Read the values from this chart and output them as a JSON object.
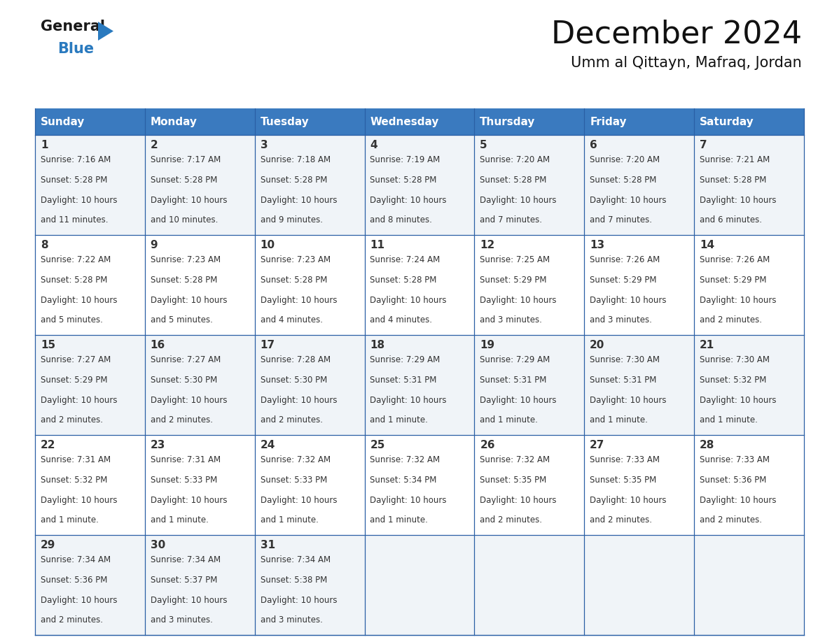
{
  "title": "December 2024",
  "subtitle": "Umm al Qittayn, Mafraq, Jordan",
  "days_of_week": [
    "Sunday",
    "Monday",
    "Tuesday",
    "Wednesday",
    "Thursday",
    "Friday",
    "Saturday"
  ],
  "header_bg": "#3a7abf",
  "header_text": "#ffffff",
  "week_backgrounds": [
    "#f0f4f8",
    "#ffffff",
    "#f0f4f8",
    "#ffffff",
    "#f0f4f8"
  ],
  "border_color": "#2a5fa5",
  "text_color": "#333333",
  "calendar_data": [
    {
      "day": 1,
      "sunrise": "7:16 AM",
      "sunset": "5:28 PM",
      "daylight": "10 hours and 11 minutes."
    },
    {
      "day": 2,
      "sunrise": "7:17 AM",
      "sunset": "5:28 PM",
      "daylight": "10 hours and 10 minutes."
    },
    {
      "day": 3,
      "sunrise": "7:18 AM",
      "sunset": "5:28 PM",
      "daylight": "10 hours and 9 minutes."
    },
    {
      "day": 4,
      "sunrise": "7:19 AM",
      "sunset": "5:28 PM",
      "daylight": "10 hours and 8 minutes."
    },
    {
      "day": 5,
      "sunrise": "7:20 AM",
      "sunset": "5:28 PM",
      "daylight": "10 hours and 7 minutes."
    },
    {
      "day": 6,
      "sunrise": "7:20 AM",
      "sunset": "5:28 PM",
      "daylight": "10 hours and 7 minutes."
    },
    {
      "day": 7,
      "sunrise": "7:21 AM",
      "sunset": "5:28 PM",
      "daylight": "10 hours and 6 minutes."
    },
    {
      "day": 8,
      "sunrise": "7:22 AM",
      "sunset": "5:28 PM",
      "daylight": "10 hours and 5 minutes."
    },
    {
      "day": 9,
      "sunrise": "7:23 AM",
      "sunset": "5:28 PM",
      "daylight": "10 hours and 5 minutes."
    },
    {
      "day": 10,
      "sunrise": "7:23 AM",
      "sunset": "5:28 PM",
      "daylight": "10 hours and 4 minutes."
    },
    {
      "day": 11,
      "sunrise": "7:24 AM",
      "sunset": "5:28 PM",
      "daylight": "10 hours and 4 minutes."
    },
    {
      "day": 12,
      "sunrise": "7:25 AM",
      "sunset": "5:29 PM",
      "daylight": "10 hours and 3 minutes."
    },
    {
      "day": 13,
      "sunrise": "7:26 AM",
      "sunset": "5:29 PM",
      "daylight": "10 hours and 3 minutes."
    },
    {
      "day": 14,
      "sunrise": "7:26 AM",
      "sunset": "5:29 PM",
      "daylight": "10 hours and 2 minutes."
    },
    {
      "day": 15,
      "sunrise": "7:27 AM",
      "sunset": "5:29 PM",
      "daylight": "10 hours and 2 minutes."
    },
    {
      "day": 16,
      "sunrise": "7:27 AM",
      "sunset": "5:30 PM",
      "daylight": "10 hours and 2 minutes."
    },
    {
      "day": 17,
      "sunrise": "7:28 AM",
      "sunset": "5:30 PM",
      "daylight": "10 hours and 2 minutes."
    },
    {
      "day": 18,
      "sunrise": "7:29 AM",
      "sunset": "5:31 PM",
      "daylight": "10 hours and 1 minute."
    },
    {
      "day": 19,
      "sunrise": "7:29 AM",
      "sunset": "5:31 PM",
      "daylight": "10 hours and 1 minute."
    },
    {
      "day": 20,
      "sunrise": "7:30 AM",
      "sunset": "5:31 PM",
      "daylight": "10 hours and 1 minute."
    },
    {
      "day": 21,
      "sunrise": "7:30 AM",
      "sunset": "5:32 PM",
      "daylight": "10 hours and 1 minute."
    },
    {
      "day": 22,
      "sunrise": "7:31 AM",
      "sunset": "5:32 PM",
      "daylight": "10 hours and 1 minute."
    },
    {
      "day": 23,
      "sunrise": "7:31 AM",
      "sunset": "5:33 PM",
      "daylight": "10 hours and 1 minute."
    },
    {
      "day": 24,
      "sunrise": "7:32 AM",
      "sunset": "5:33 PM",
      "daylight": "10 hours and 1 minute."
    },
    {
      "day": 25,
      "sunrise": "7:32 AM",
      "sunset": "5:34 PM",
      "daylight": "10 hours and 1 minute."
    },
    {
      "day": 26,
      "sunrise": "7:32 AM",
      "sunset": "5:35 PM",
      "daylight": "10 hours and 2 minutes."
    },
    {
      "day": 27,
      "sunrise": "7:33 AM",
      "sunset": "5:35 PM",
      "daylight": "10 hours and 2 minutes."
    },
    {
      "day": 28,
      "sunrise": "7:33 AM",
      "sunset": "5:36 PM",
      "daylight": "10 hours and 2 minutes."
    },
    {
      "day": 29,
      "sunrise": "7:34 AM",
      "sunset": "5:36 PM",
      "daylight": "10 hours and 2 minutes."
    },
    {
      "day": 30,
      "sunrise": "7:34 AM",
      "sunset": "5:37 PM",
      "daylight": "10 hours and 3 minutes."
    },
    {
      "day": 31,
      "sunrise": "7:34 AM",
      "sunset": "5:38 PM",
      "daylight": "10 hours and 3 minutes."
    }
  ],
  "fig_width": 11.88,
  "fig_height": 9.18
}
